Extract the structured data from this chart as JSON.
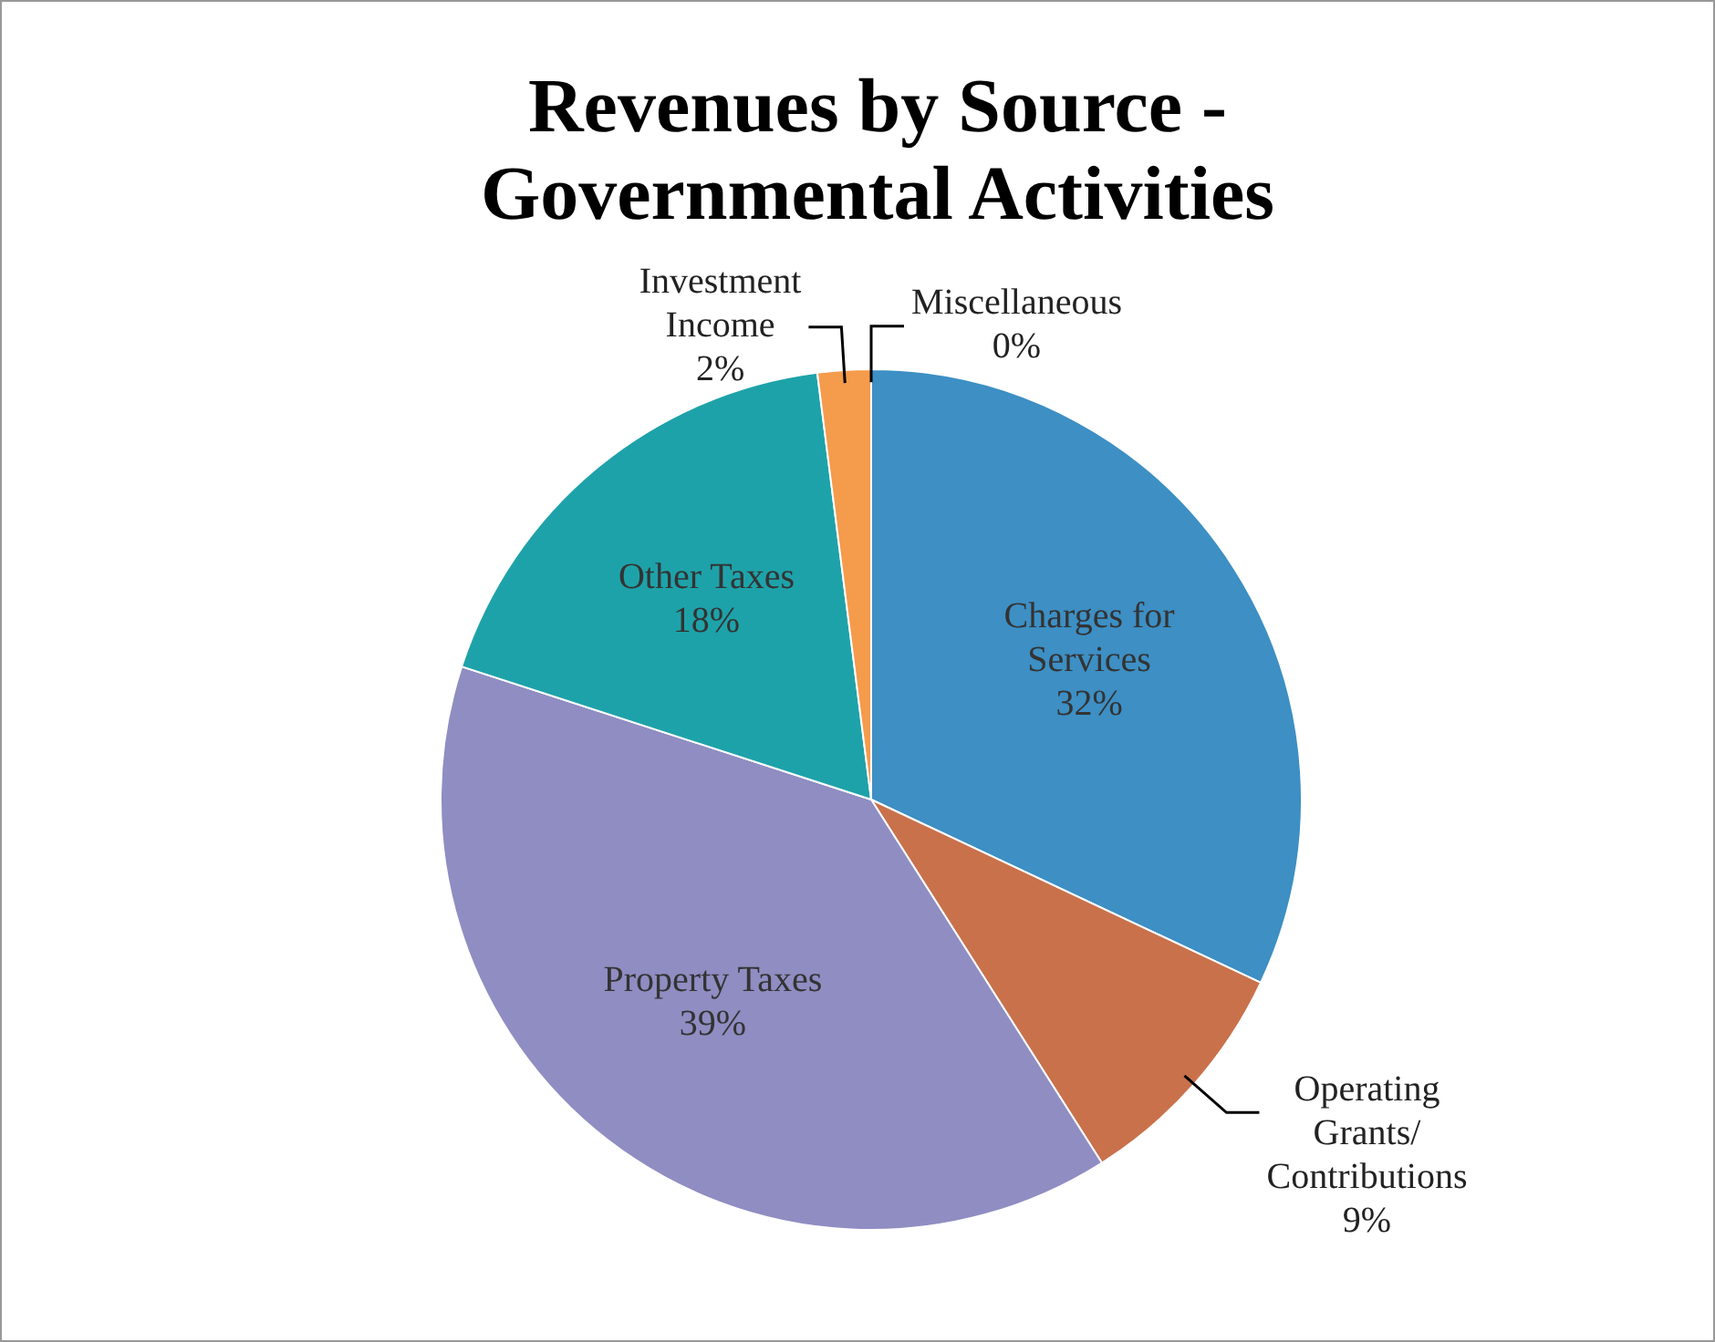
{
  "chart_data": {
    "type": "pie",
    "title": "Revenues by Source - Governmental Activities",
    "categories": [
      "Charges for Services",
      "Operating Grants/Contributions",
      "Property Taxes",
      "Other Taxes",
      "Investment Income",
      "Miscellaneous"
    ],
    "values": [
      32,
      9,
      39,
      18,
      2,
      0
    ],
    "colors": [
      "#3d8fc4",
      "#c9714b",
      "#8f8dc2",
      "#1ea2a9",
      "#f59b4c",
      "#8fb2e2"
    ],
    "value_labels": [
      "32%",
      "9%",
      "39%",
      "18%",
      "2%",
      "0%"
    ],
    "legend": false
  }
}
